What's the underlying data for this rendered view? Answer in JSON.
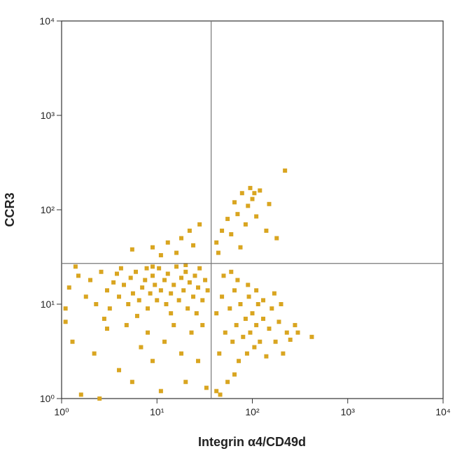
{
  "chart_data": {
    "type": "scatter",
    "x_label": "Integrin α4/CD49d",
    "y_label": "CCR3",
    "xlog": true,
    "ylog": true,
    "xlim": [
      1,
      10000
    ],
    "ylim": [
      1,
      10000
    ],
    "xticks": [
      {
        "value": 1,
        "label": "10⁰"
      },
      {
        "value": 10,
        "label": "10¹"
      },
      {
        "value": 100,
        "label": "10²"
      },
      {
        "value": 1000,
        "label": "10³"
      },
      {
        "value": 10000,
        "label": "10⁴"
      }
    ],
    "yticks": [
      {
        "value": 1,
        "label": "10⁰"
      },
      {
        "value": 10,
        "label": "10¹"
      },
      {
        "value": 100,
        "label": "10²"
      },
      {
        "value": 1000,
        "label": "10³"
      },
      {
        "value": 10000,
        "label": "10⁴"
      }
    ],
    "quadrant_x": 37,
    "quadrant_y": 27,
    "color": "#d9a520",
    "x": [
      1.2,
      1.5,
      1.8,
      2,
      2.3,
      2.6,
      3,
      3.2,
      3.5,
      4,
      4.2,
      4.5,
      5,
      5.3,
      5.6,
      6,
      6.5,
      7,
      7.5,
      8,
      8.5,
      9,
      9.5,
      10,
      10.5,
      11,
      12,
      12.5,
      13,
      14,
      15,
      16,
      17,
      18,
      19,
      20,
      21,
      22,
      24,
      25,
      27,
      28,
      30,
      32,
      34,
      1.1,
      1.4,
      2.8,
      6.2,
      9,
      14,
      20,
      26,
      3.8,
      7.8,
      5.5,
      9,
      13,
      16,
      22,
      28,
      18,
      11,
      24,
      1.3,
      1.6,
      2.2,
      3,
      4,
      4.8,
      5.5,
      6.8,
      8,
      9,
      11,
      12,
      15,
      18,
      20,
      23,
      27,
      30,
      33,
      2.5,
      1.1,
      42,
      45,
      48,
      52,
      55,
      58,
      62,
      65,
      68,
      72,
      75,
      80,
      85,
      88,
      92,
      95,
      100,
      105,
      110,
      115,
      120,
      130,
      140,
      150,
      160,
      175,
      190,
      210,
      230,
      250,
      42,
      50,
      60,
      70,
      90,
      110,
      300,
      420,
      46,
      65,
      130,
      170,
      200,
      280,
      42,
      48,
      55,
      60,
      65,
      70,
      78,
      85,
      90,
      95,
      100,
      110,
      120,
      140,
      180,
      220,
      150,
      44,
      75,
      105
    ],
    "y": [
      15,
      20,
      12,
      18,
      10,
      22,
      14,
      9,
      17,
      12,
      24,
      16,
      10,
      19,
      13,
      22,
      11,
      15,
      18,
      9,
      13,
      20,
      16,
      11,
      24,
      14,
      18,
      10,
      21,
      13,
      16,
      25,
      11,
      19,
      14,
      22,
      9,
      17,
      12,
      20,
      15,
      24,
      11,
      18,
      14,
      9,
      25,
      7,
      7.5,
      25,
      8,
      26,
      8,
      21,
      24,
      38,
      40,
      45,
      35,
      60,
      70,
      50,
      33,
      42,
      4,
      1.1,
      3,
      5.5,
      2,
      6,
      1.5,
      3.5,
      5,
      2.5,
      1.2,
      4,
      6,
      3,
      1.5,
      5,
      2.5,
      6,
      1.3,
      1,
      6.5,
      8,
      3,
      12,
      5,
      1.5,
      9,
      4,
      14,
      6,
      2.5,
      10,
      4.5,
      7,
      3,
      12,
      5,
      8,
      3.5,
      6,
      10,
      4,
      7,
      2.8,
      5.5,
      9,
      4,
      6.5,
      3,
      5,
      4.2,
      1.2,
      20,
      22,
      18,
      16,
      14,
      5,
      4.5,
      1.1,
      1.8,
      11,
      13,
      10,
      6,
      45,
      60,
      80,
      55,
      120,
      90,
      150,
      70,
      110,
      170,
      130,
      85,
      160,
      60,
      50,
      260,
      115,
      35,
      40,
      150
    ]
  }
}
